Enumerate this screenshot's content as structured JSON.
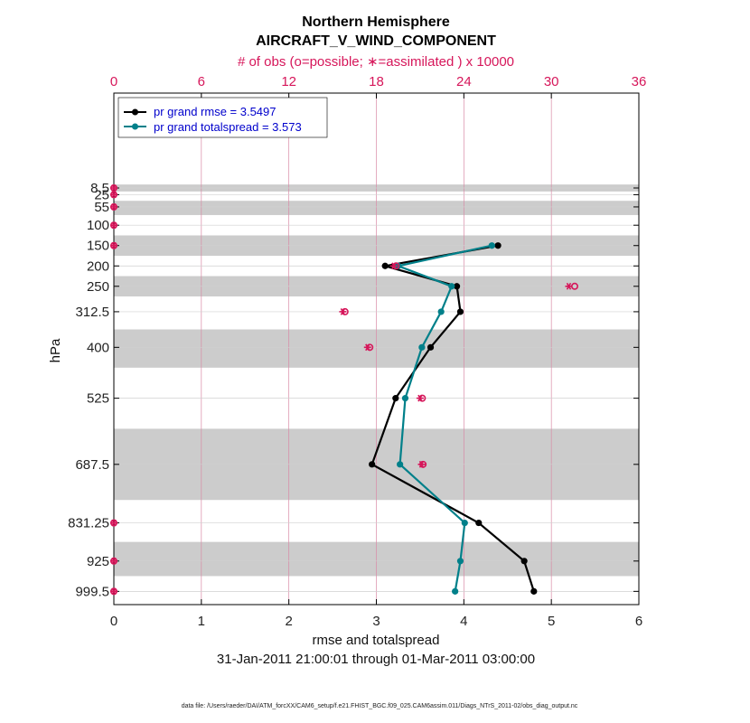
{
  "chart_data": {
    "type": "line",
    "title": "Northern Hemisphere",
    "subtitle": "AIRCRAFT_V_WIND_COMPONENT",
    "top_axis_label": "# of obs (o=possible; ∗=assimilated ) x 10000",
    "xlabel": "rmse and totalspread",
    "ylabel": "hPa",
    "date_range": "31-Jan-2011 21:00:01 through 01-Mar-2011 03:00:00",
    "footnote": "data file: /Users/raeder/DAI/ATM_forcXX/CAM6_setup/f.e21.FHIST_BGC.f09_025.CAM6assim.011/Diags_NTrS_2011-02/obs_diag_output.nc",
    "xlim": [
      0,
      6
    ],
    "x_ticks": [
      0,
      1,
      2,
      3,
      4,
      5,
      6
    ],
    "top_xlim": [
      0,
      36
    ],
    "top_ticks": [
      0,
      6,
      12,
      18,
      24,
      30,
      36
    ],
    "y_tick_labels": [
      "8.5",
      "25",
      "55",
      "100",
      "150",
      "200",
      "250",
      "312.5",
      "400",
      "525",
      "687.5",
      "831.25",
      "925",
      "999.5"
    ],
    "levels": [
      8.5,
      25,
      55,
      100,
      150,
      200,
      250,
      312.5,
      400,
      525,
      687.5,
      831.25,
      925,
      999.5
    ],
    "band_edges": [
      [
        0,
        17
      ],
      [
        40,
        75
      ],
      [
        125,
        175
      ],
      [
        225,
        275
      ],
      [
        356,
        450
      ],
      [
        600,
        775
      ],
      [
        878,
        962
      ]
    ],
    "grid": true,
    "legend_location": "top-left",
    "series": [
      {
        "name": "pr grand rmse = 3.5497",
        "color": "#000000",
        "x": [
          4.39,
          3.1,
          3.92,
          3.96,
          3.62,
          3.22,
          2.95,
          4.17,
          4.69,
          4.8
        ],
        "y": [
          150,
          200,
          250,
          312.5,
          400,
          525,
          687.5,
          831.25,
          925,
          999.5
        ]
      },
      {
        "name": "pr grand totalspread = 3.573",
        "color": "#00808a",
        "x": [
          4.32,
          3.25,
          3.86,
          3.74,
          3.52,
          3.33,
          3.27,
          4.01,
          3.96,
          3.9
        ],
        "y": [
          150,
          200,
          250,
          312.5,
          400,
          525,
          687.5,
          831.25,
          925,
          999.5
        ]
      }
    ],
    "obs_counts": {
      "unit": "x 10000",
      "levels": [
        8.5,
        25,
        55,
        100,
        150,
        200,
        250,
        312.5,
        400,
        525,
        687.5,
        831.25,
        925,
        999.5
      ],
      "possible": [
        0,
        0,
        0,
        0,
        0,
        19.35,
        31.6,
        15.85,
        17.55,
        21.15,
        21.2,
        0,
        0,
        0
      ],
      "assimilated": [
        0,
        0,
        0,
        0,
        0,
        19.2,
        31.2,
        15.7,
        17.4,
        21.0,
        21.1,
        0,
        0,
        0
      ]
    }
  },
  "colors": {
    "obs_marker": "#d6165a",
    "band_fill": "#cccccc",
    "grid_vertical": "#d98aa6",
    "grid_horizontal": "#d0d0d0"
  }
}
